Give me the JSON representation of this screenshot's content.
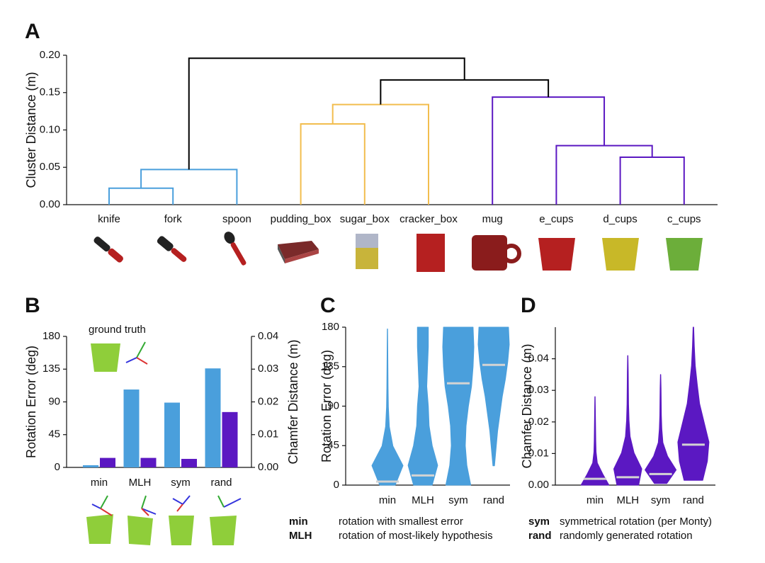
{
  "panel_labels": [
    "A",
    "B",
    "C",
    "D"
  ],
  "notes": [
    {
      "key": "min",
      "text": "rotation with smallest error"
    },
    {
      "key": "MLH",
      "text": "rotation of most-likely hypothesis"
    },
    {
      "key": "sym",
      "text": "symmetrical rotation (per Monty)"
    },
    {
      "key": "rand",
      "text": "randomly generated rotation"
    }
  ],
  "chart_data": [
    {
      "type": "dendrogram",
      "ylabel": "Cluster Distance (m)",
      "leaves": [
        "knife",
        "fork",
        "spoon",
        "pudding_box",
        "sugar_box",
        "cracker_box",
        "mug",
        "e_cups",
        "d_cups",
        "c_cups"
      ],
      "links": [
        {
          "left": 0,
          "right": 1,
          "height": 0.022,
          "color": "#4a9fdc"
        },
        {
          "left": 10,
          "right": 2,
          "height": 0.047,
          "color": "#4a9fdc"
        },
        {
          "left": 3,
          "right": 4,
          "height": 0.108,
          "color": "#f2bd4e"
        },
        {
          "left": 12,
          "right": 5,
          "height": 0.134,
          "color": "#f2bd4e"
        },
        {
          "left": 8,
          "right": 9,
          "height": 0.0635,
          "color": "#5b18c2"
        },
        {
          "left": 7,
          "right": 14,
          "height": 0.079,
          "color": "#5b18c2"
        },
        {
          "left": 6,
          "right": 15,
          "height": 0.144,
          "color": "#5b18c2"
        },
        {
          "left": 13,
          "right": 16,
          "height": 0.167,
          "color": "#000000"
        },
        {
          "left": 11,
          "right": 17,
          "height": 0.196,
          "color": "#000000"
        }
      ],
      "ylim": [
        0,
        0.2
      ],
      "yticks": [
        {
          "value": 0,
          "label": "0.00"
        },
        0.05,
        {
          "value": 0.1,
          "label": "0.10"
        },
        0.15,
        {
          "value": 0.2,
          "label": "0.20"
        }
      ]
    },
    {
      "type": "bar",
      "ylabel": "Rotation Error (deg)",
      "y2label": "Chamfer Distance (m)",
      "annotation": "ground truth",
      "categories": [
        "min",
        "MLH",
        "sym",
        "rand"
      ],
      "series": [
        {
          "color": "#4a9fdc",
          "values": [
            3,
            107,
            89,
            136
          ]
        },
        {
          "color": "#5b18c2",
          "axis": "y2",
          "values": [
            0.0029,
            0.0029,
            0.0026,
            0.0169
          ]
        }
      ],
      "ylim": [
        0,
        180
      ],
      "yticks": [
        0,
        45,
        90,
        135,
        180
      ],
      "y2lim": [
        0,
        0.04
      ],
      "y2ticks": [
        {
          "value": 0,
          "label": "0.00"
        },
        0.01,
        0.02,
        0.03,
        0.04
      ]
    },
    {
      "type": "violin",
      "ylabel": "Rotation Error (deg)",
      "color": "#4a9fdc",
      "median_color": "#d3d3d3",
      "categories": [
        "min",
        "MLH",
        "sym",
        "rand"
      ],
      "medians": [
        4,
        11,
        116,
        137
      ],
      "mins": [
        0,
        0,
        0,
        22
      ],
      "maxs": [
        178,
        180,
        180,
        180
      ],
      "widths": [
        [
          0.5,
          1.0,
          0.35,
          0.12,
          0.06,
          0.04,
          0.03,
          0.02,
          0.01
        ],
        [
          0.6,
          0.95,
          0.6,
          0.4,
          0.35,
          0.25,
          0.3,
          0.35,
          0.35
        ],
        [
          0.8,
          0.55,
          0.45,
          0.5,
          0.65,
          0.85,
          0.95,
          1.0,
          0.95
        ],
        [
          0.05,
          0.15,
          0.25,
          0.4,
          0.55,
          0.75,
          0.9,
          1.0,
          0.95
        ]
      ],
      "ylim": [
        0,
        180
      ],
      "yticks": [
        0,
        45,
        90,
        135,
        180
      ]
    },
    {
      "type": "violin",
      "ylabel": "Chamfer Distance (m)",
      "color": "#5b18c2",
      "median_color": "#d3d3d3",
      "categories": [
        "min",
        "MLH",
        "sym",
        "rand"
      ],
      "medians": [
        0.002,
        0.0025,
        0.0035,
        0.0128
      ],
      "mins": [
        0,
        0,
        0.0005,
        0.0015
      ],
      "maxs": [
        0.028,
        0.041,
        0.035,
        0.05
      ],
      "widths": [
        [
          0.9,
          0.5,
          0.15,
          0.07,
          0.05,
          0.04,
          0.03,
          0.02,
          0.01
        ],
        [
          0.7,
          0.9,
          0.4,
          0.15,
          0.08,
          0.05,
          0.04,
          0.03,
          0.01
        ],
        [
          0.4,
          1.0,
          0.45,
          0.15,
          0.08,
          0.05,
          0.04,
          0.03,
          0.01
        ],
        [
          0.6,
          0.9,
          1.0,
          0.7,
          0.4,
          0.25,
          0.12,
          0.06,
          0.02
        ]
      ],
      "ylim": [
        0,
        0.05
      ],
      "yticks": [
        {
          "value": 0,
          "label": "0.00"
        },
        0.01,
        0.02,
        0.03,
        0.04
      ]
    }
  ]
}
